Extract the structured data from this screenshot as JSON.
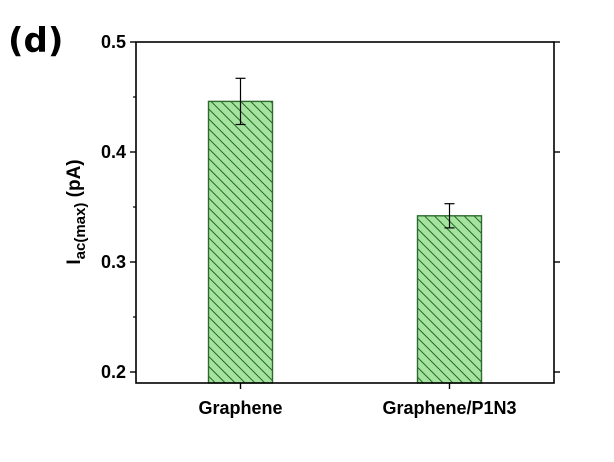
{
  "panel_label": "(d)",
  "chart_data": {
    "type": "bar",
    "categories": [
      "Graphene",
      "Graphene/P1N3"
    ],
    "values": [
      0.446,
      0.342
    ],
    "errors": [
      0.021,
      0.011
    ],
    "ylabel_main": "I",
    "ylabel_sub": "ac(max)",
    "ylabel_suffix": " (pA)",
    "ylim": [
      0.19,
      0.5
    ],
    "yticks": [
      0.2,
      0.3,
      0.4,
      0.5
    ],
    "ytick_labels": [
      "0.2",
      "0.3",
      "0.4",
      "0.5"
    ],
    "grid": false,
    "legend": "none",
    "bar_fill": "#a6e3a1",
    "bar_hatch": "#1e6b1e",
    "bar_edge": "#2d6a2d"
  }
}
